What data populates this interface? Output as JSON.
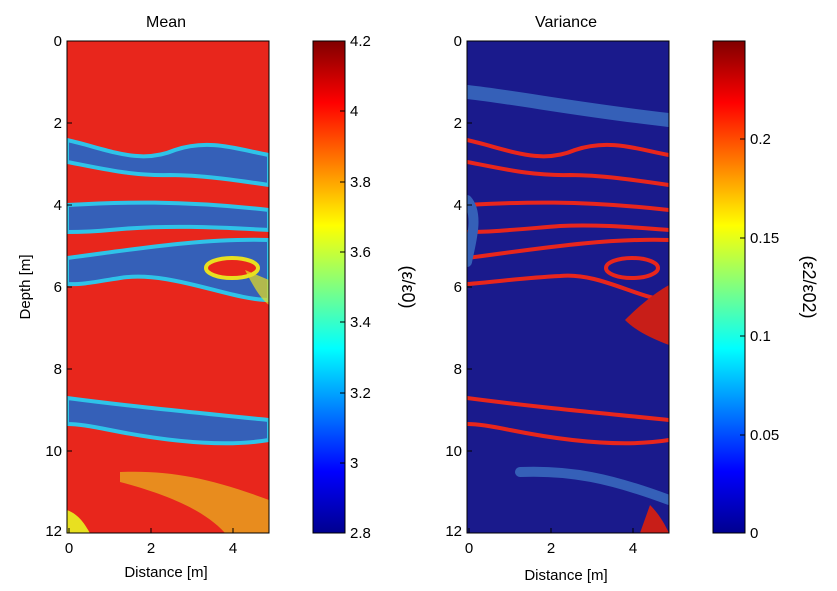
{
  "chart_data": [
    {
      "type": "heatmap",
      "title": "Mean",
      "xlabel": "Distance [m]",
      "ylabel": "Depth [m]",
      "xlim": [
        0,
        5.3
      ],
      "ylim": [
        12,
        0
      ],
      "x_ticks": [
        "0",
        "2",
        "4"
      ],
      "y_ticks": [
        "0",
        "2",
        "4",
        "6",
        "8",
        "10",
        "12"
      ],
      "colormap": "jet",
      "colorbar": {
        "label": "(ε/ε0)",
        "range": [
          2.8,
          4.2
        ],
        "ticks": [
          "2.8",
          "3",
          "3.2",
          "3.4",
          "3.6",
          "3.8",
          "4",
          "4.2"
        ]
      },
      "description_values": {
        "high_facies_value": 4.0,
        "low_facies_value": 2.9,
        "boundary_value": 3.4
      }
    },
    {
      "type": "heatmap",
      "title": "Variance",
      "xlabel": "Distance [m]",
      "ylabel": "",
      "xlim": [
        0,
        5.3
      ],
      "ylim": [
        12,
        0
      ],
      "x_ticks": [
        "0",
        "2",
        "4"
      ],
      "y_ticks": [
        "0",
        "2",
        "4",
        "6",
        "8",
        "10",
        "12"
      ],
      "colormap": "jet",
      "colorbar": {
        "label": "(ε2/ε02)",
        "range": [
          0,
          0.25
        ],
        "ticks": [
          "0",
          "0.05",
          "0.1",
          "0.15",
          "0.2"
        ]
      },
      "description_values": {
        "interior_value": 0.01,
        "boundary_value": 0.22
      }
    }
  ],
  "colors": {
    "dark_blue": "#1a1a8c",
    "blue": "#3560b8",
    "cyan": "#2fc3e8",
    "yellow": "#e8e020",
    "red": "#e8261c",
    "dark_red": "#800000"
  }
}
